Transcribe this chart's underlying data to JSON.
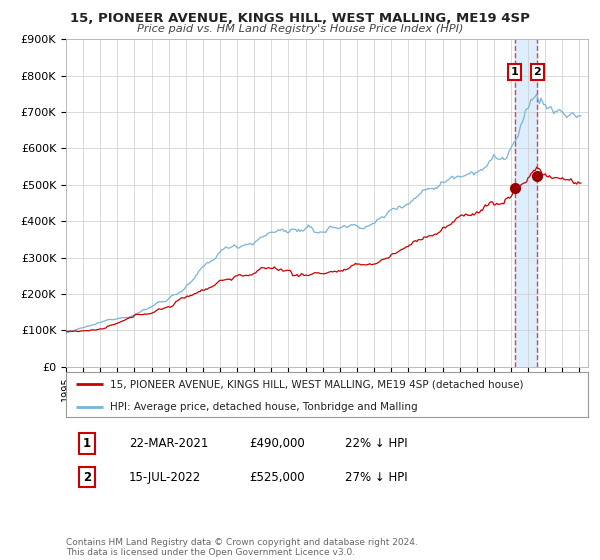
{
  "title1": "15, PIONEER AVENUE, KINGS HILL, WEST MALLING, ME19 4SP",
  "title2": "Price paid vs. HM Land Registry's House Price Index (HPI)",
  "legend_line1": "15, PIONEER AVENUE, KINGS HILL, WEST MALLING, ME19 4SP (detached house)",
  "legend_line2": "HPI: Average price, detached house, Tonbridge and Malling",
  "annotation1_num": "1",
  "annotation1_date": "22-MAR-2021",
  "annotation1_price": "£490,000",
  "annotation1_hpi": "22% ↓ HPI",
  "annotation2_num": "2",
  "annotation2_date": "15-JUL-2022",
  "annotation2_price": "£525,000",
  "annotation2_hpi": "27% ↓ HPI",
  "footer": "Contains HM Land Registry data © Crown copyright and database right 2024.\nThis data is licensed under the Open Government Licence v3.0.",
  "hpi_color": "#7ab4d8",
  "price_color": "#cc0000",
  "marker_color": "#990000",
  "bg_color": "#ffffff",
  "grid_color": "#cccccc",
  "highlight_color": "#ddeeff",
  "vline_color": "#dd4444",
  "ylim": [
    0,
    900000
  ],
  "yticks": [
    0,
    100000,
    200000,
    300000,
    400000,
    500000,
    600000,
    700000,
    800000,
    900000
  ],
  "ytick_labels": [
    "£0",
    "£100K",
    "£200K",
    "£300K",
    "£400K",
    "£500K",
    "£600K",
    "£700K",
    "£800K",
    "£900K"
  ],
  "sale1_x": 2021.22,
  "sale1_y": 490000,
  "sale2_x": 2022.54,
  "sale2_y": 525000,
  "xmin": 1995.0,
  "xmax": 2025.5
}
